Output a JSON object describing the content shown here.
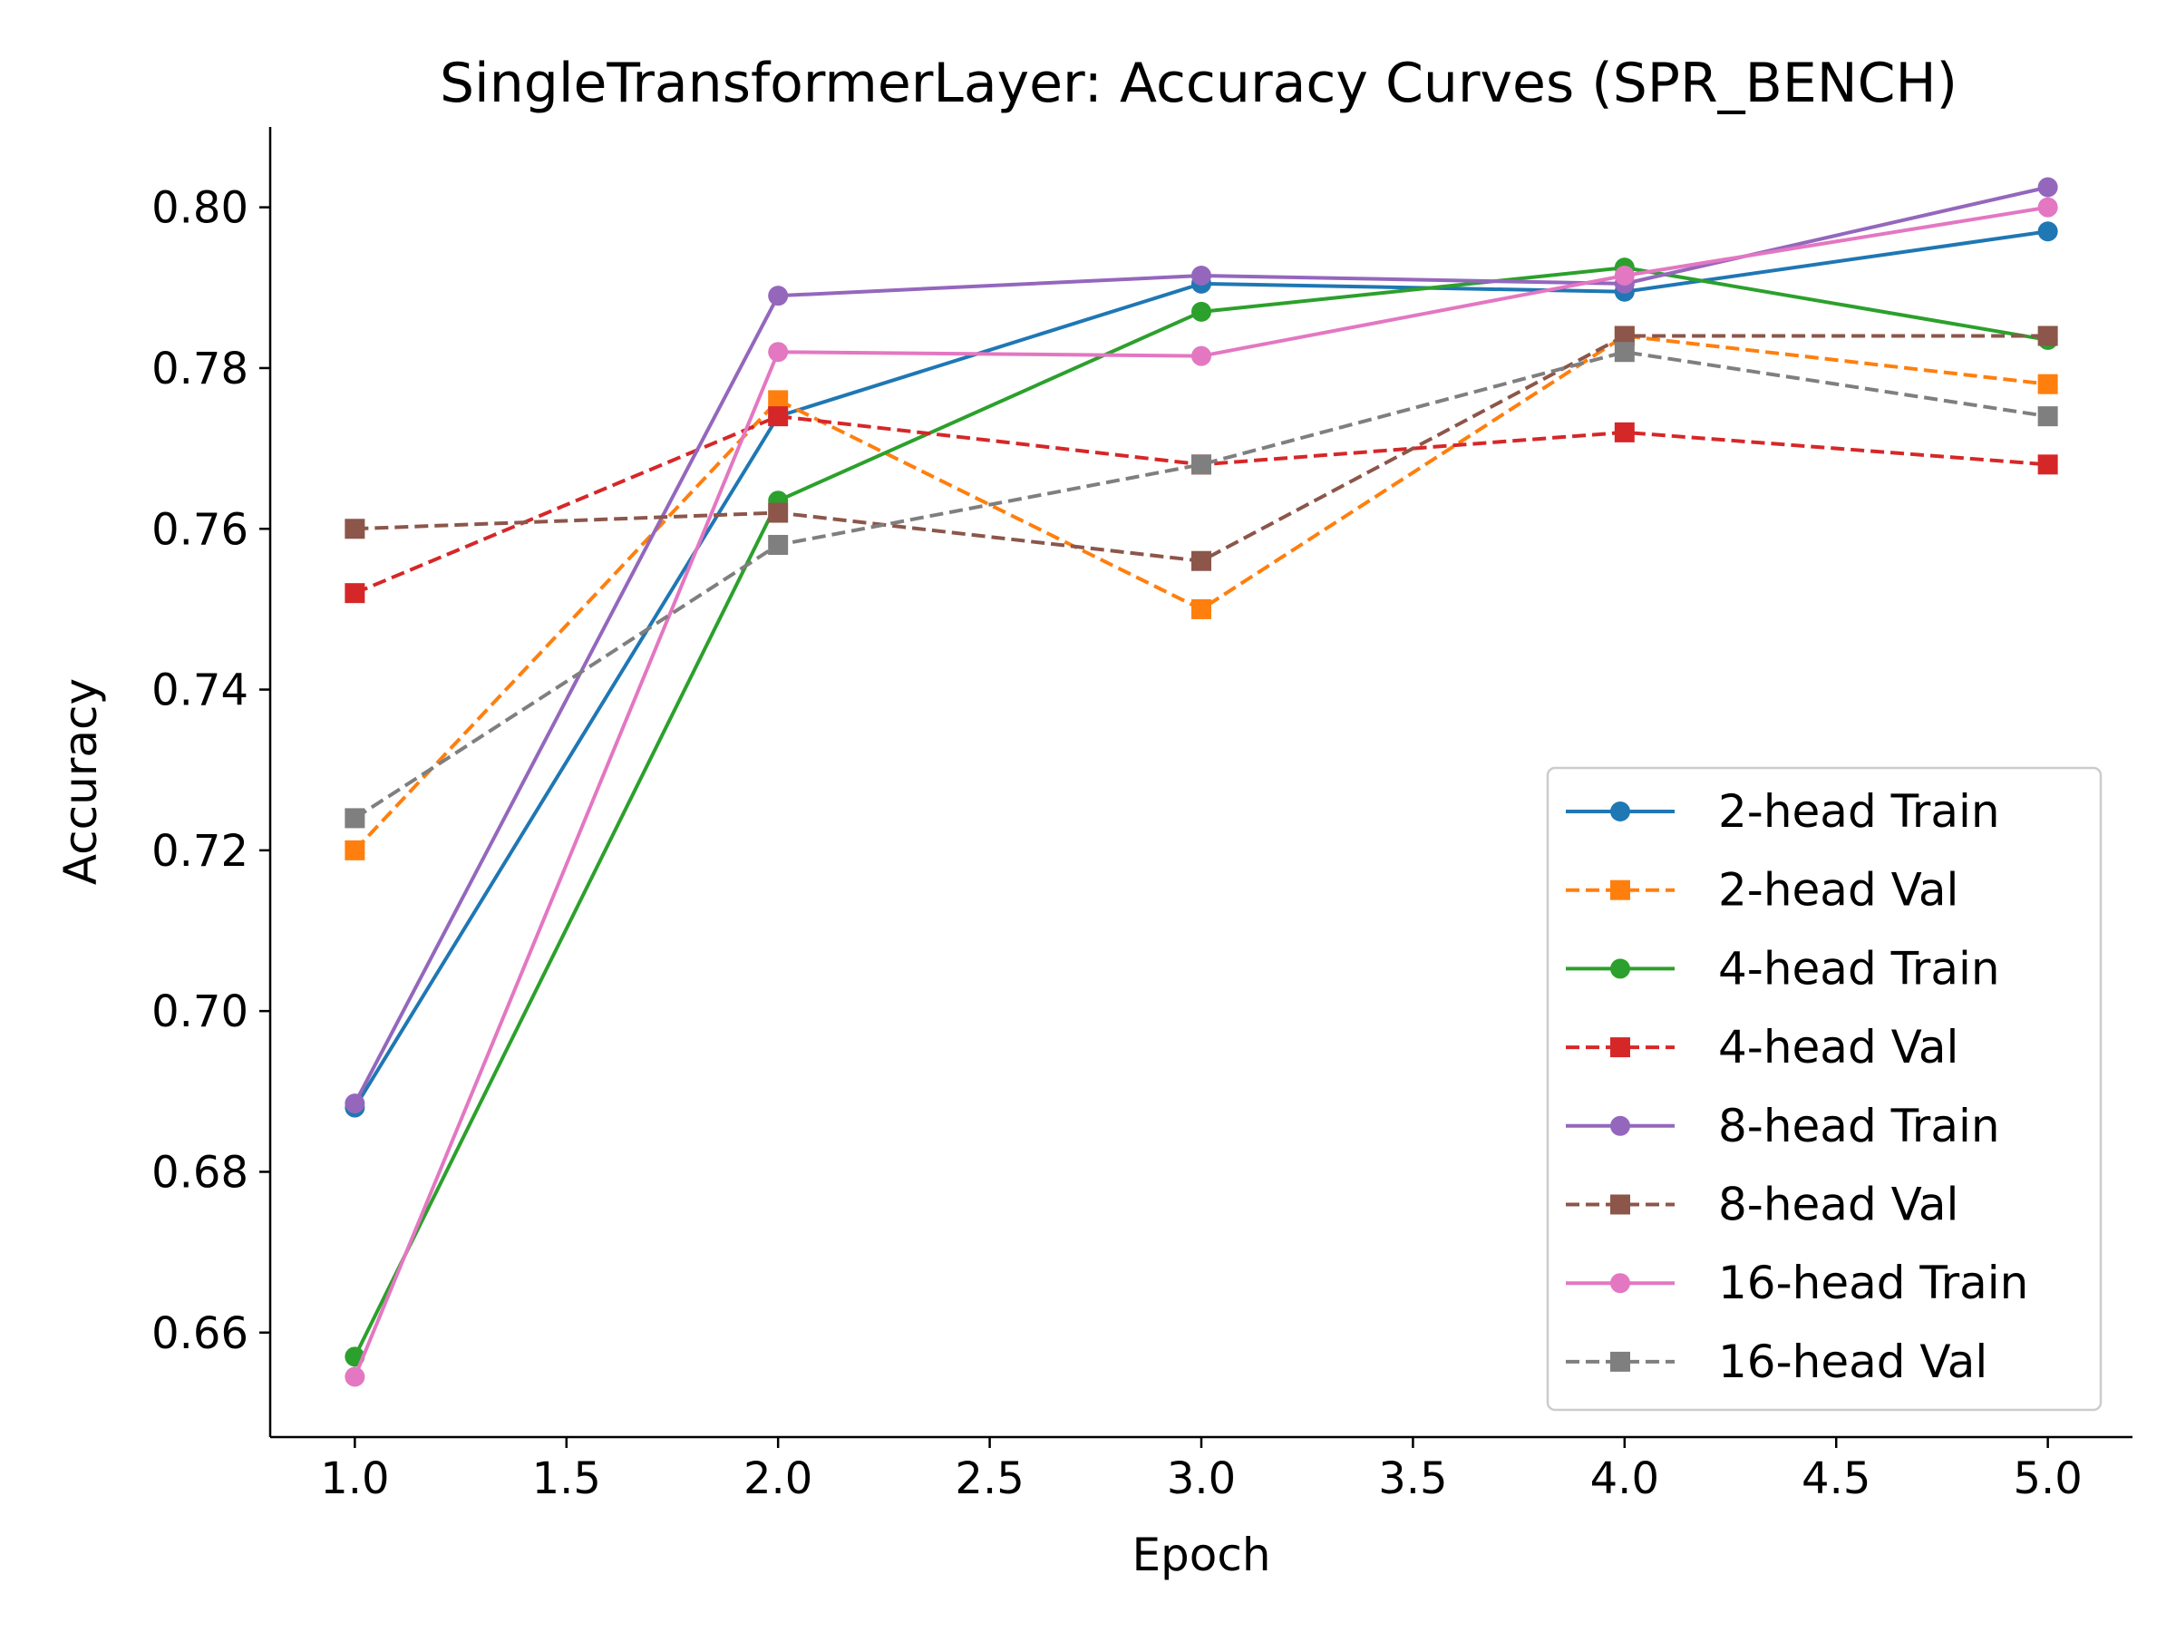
{
  "chart_data": {
    "type": "line",
    "title": "SingleTransformerLayer: Accuracy Curves (SPR_BENCH)",
    "xlabel": "Epoch",
    "ylabel": "Accuracy",
    "xlim": [
      0.8,
      5.2
    ],
    "ylim": [
      0.647,
      0.81
    ],
    "xticks": [
      1.0,
      1.5,
      2.0,
      2.5,
      3.0,
      3.5,
      4.0,
      4.5,
      5.0
    ],
    "xtick_labels": [
      "1.0",
      "1.5",
      "2.0",
      "2.5",
      "3.0",
      "3.5",
      "4.0",
      "4.5",
      "5.0"
    ],
    "yticks": [
      0.66,
      0.68,
      0.7,
      0.72,
      0.74,
      0.76,
      0.78,
      0.8
    ],
    "ytick_labels": [
      "0.66",
      "0.68",
      "0.70",
      "0.72",
      "0.74",
      "0.76",
      "0.78",
      "0.80"
    ],
    "grid": false,
    "legend_position": "lower-right",
    "x": [
      1,
      2,
      3,
      4,
      5
    ],
    "series": [
      {
        "name": "2-head Train",
        "values": [
          0.688,
          0.774,
          0.7905,
          0.7895,
          0.797
        ],
        "color": "#1f77b4",
        "dashed": false,
        "marker": "circle"
      },
      {
        "name": "2-head Val",
        "values": [
          0.72,
          0.776,
          0.75,
          0.784,
          0.778
        ],
        "color": "#ff7f0e",
        "dashed": true,
        "marker": "square"
      },
      {
        "name": "4-head Train",
        "values": [
          0.657,
          0.7635,
          0.787,
          0.7925,
          0.7835
        ],
        "color": "#2ca02c",
        "dashed": false,
        "marker": "circle"
      },
      {
        "name": "4-head Val",
        "values": [
          0.752,
          0.774,
          0.768,
          0.772,
          0.768
        ],
        "color": "#d62728",
        "dashed": true,
        "marker": "square"
      },
      {
        "name": "8-head Train",
        "values": [
          0.6885,
          0.789,
          0.7915,
          0.7905,
          0.8025
        ],
        "color": "#9467bd",
        "dashed": false,
        "marker": "circle"
      },
      {
        "name": "8-head Val",
        "values": [
          0.76,
          0.762,
          0.756,
          0.784,
          0.784
        ],
        "color": "#8c564b",
        "dashed": true,
        "marker": "square"
      },
      {
        "name": "16-head Train",
        "values": [
          0.6545,
          0.782,
          0.7815,
          0.7915,
          0.8
        ],
        "color": "#e377c2",
        "dashed": false,
        "marker": "circle"
      },
      {
        "name": "16-head Val",
        "values": [
          0.724,
          0.758,
          0.768,
          0.782,
          0.774
        ],
        "color": "#7f7f7f",
        "dashed": true,
        "marker": "square"
      }
    ]
  }
}
